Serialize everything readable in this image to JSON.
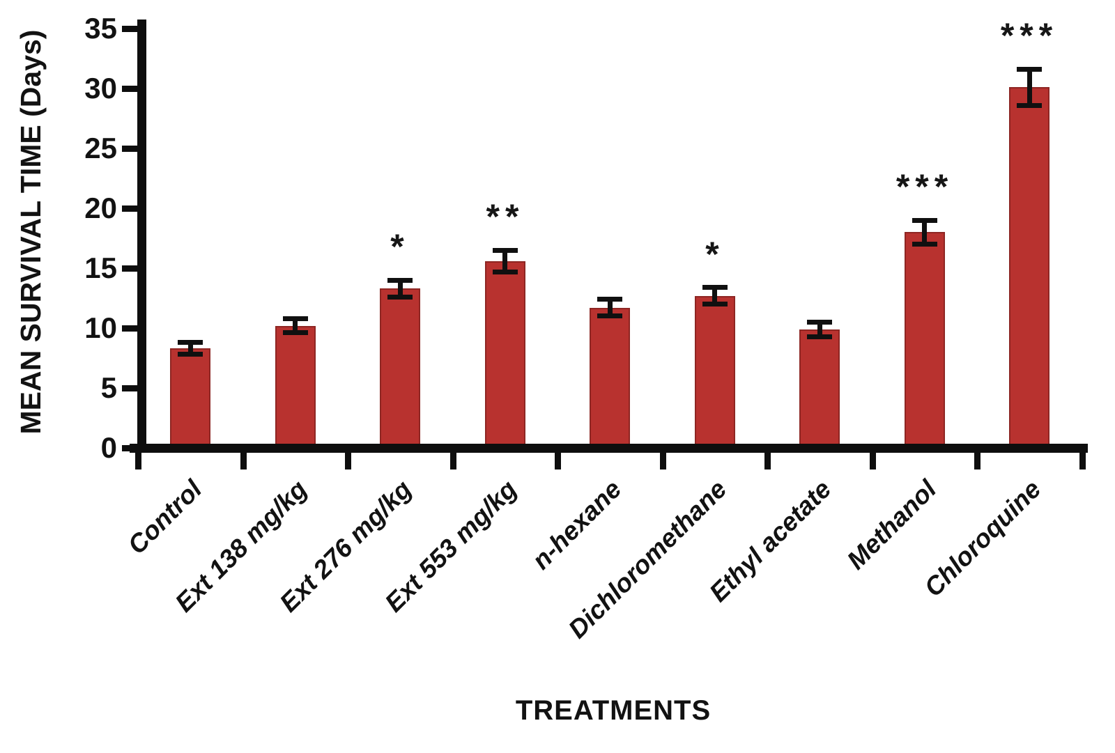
{
  "chart_data": {
    "type": "bar",
    "title": "",
    "ylabel": "MEAN SURVIVAL TIME (Days)",
    "xlabel": "TREATMENTS",
    "ylim": [
      0,
      35
    ],
    "ytick_step": 5,
    "yticks": [
      0,
      5,
      10,
      15,
      20,
      25,
      30,
      35
    ],
    "grid": false,
    "legend": false,
    "categories": [
      "Control",
      "Ext 138 mg/kg",
      "Ext 276 mg/kg",
      "Ext 553 mg/kg",
      "n-hexane",
      "Dichloromethane",
      "Ethyl acetate",
      "Methanol",
      "Chloroquine"
    ],
    "series": [
      {
        "name": "Mean survival time (days)",
        "values": [
          8.3,
          10.2,
          13.3,
          15.6,
          11.7,
          12.7,
          9.9,
          18.0,
          30.1
        ],
        "error_bars": [
          0.5,
          0.6,
          0.7,
          0.9,
          0.7,
          0.7,
          0.6,
          1.0,
          1.5
        ],
        "significance": [
          "",
          "",
          "*",
          "**",
          "",
          "*",
          "",
          "***",
          "***"
        ]
      }
    ],
    "bar_color": "#b8322f",
    "bar_edge_color": "#8e2623",
    "axis_color": "#0e0e0e",
    "text_color": "#121212",
    "background_color": "#ffffff"
  }
}
